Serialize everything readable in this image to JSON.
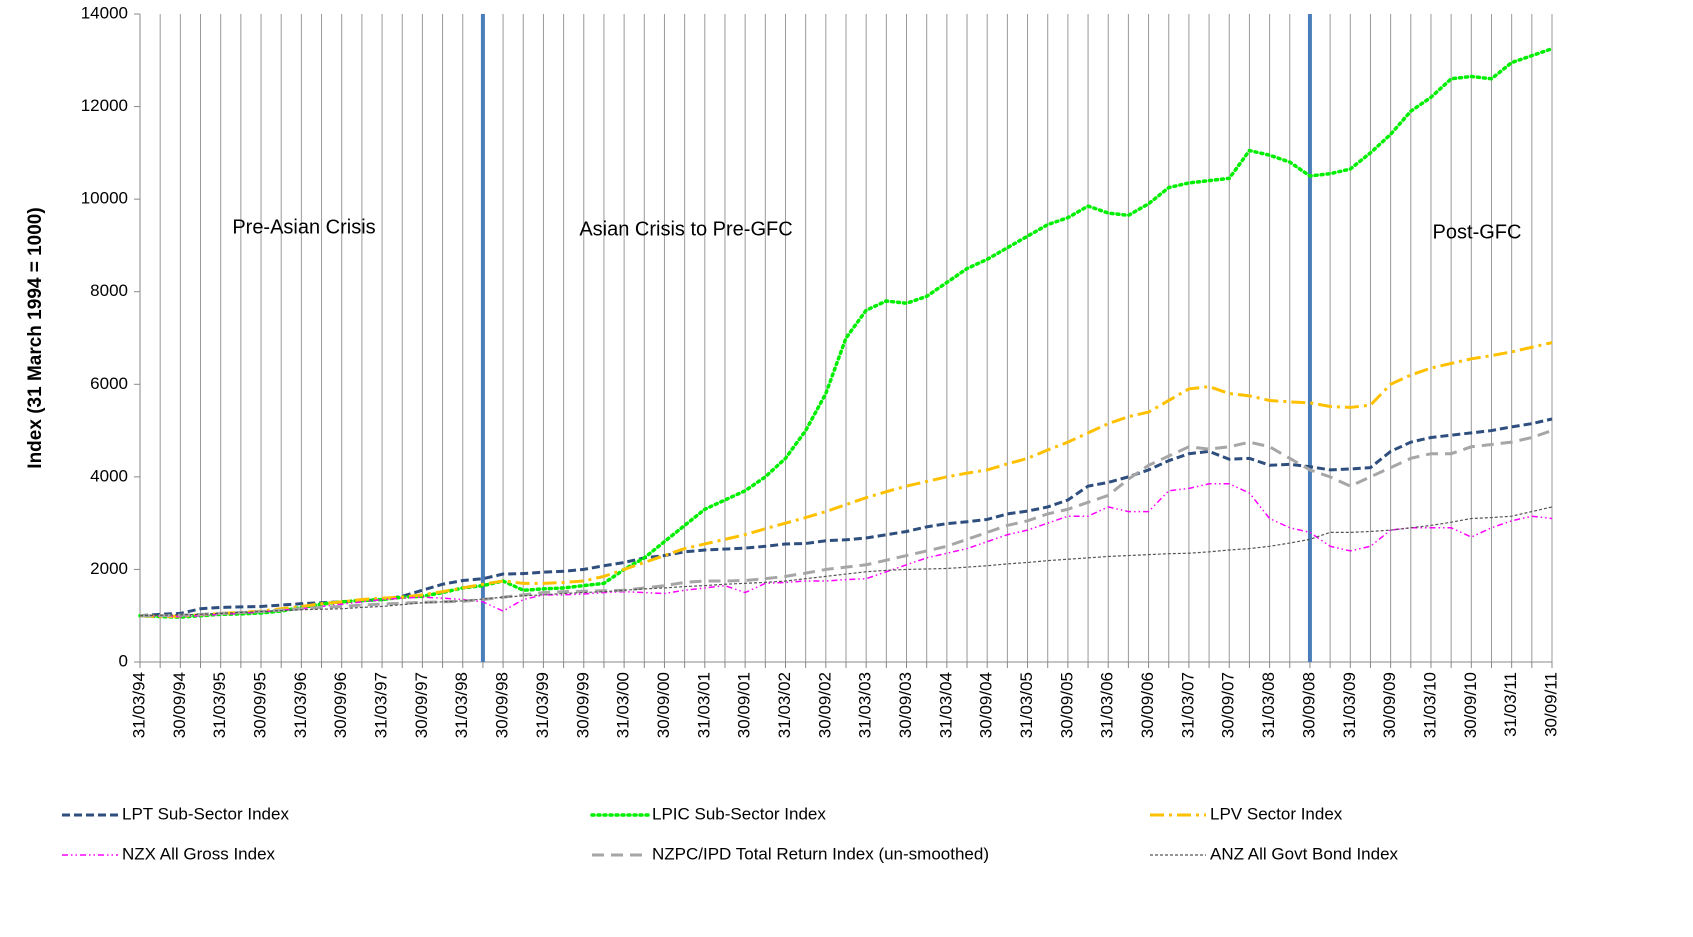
{
  "chart_data": {
    "type": "line",
    "ylabel": "Index (31 March 1994 = 1000)",
    "categories": [
      "31/03/94",
      null,
      "30/09/94",
      null,
      "31/03/95",
      null,
      "30/09/95",
      null,
      "31/03/96",
      null,
      "30/09/96",
      null,
      "31/03/97",
      null,
      "30/09/97",
      null,
      "31/03/98",
      null,
      "30/09/98",
      null,
      "31/03/99",
      null,
      "30/09/99",
      null,
      "31/03/00",
      null,
      "30/09/00",
      null,
      "31/03/01",
      null,
      "30/09/01",
      null,
      "31/03/02",
      null,
      "30/09/02",
      null,
      "31/03/03",
      null,
      "30/09/03",
      null,
      "31/03/04",
      null,
      "30/09/04",
      null,
      "31/03/05",
      null,
      "30/09/05",
      null,
      "31/03/06",
      null,
      "30/09/06",
      null,
      "31/03/07",
      null,
      "30/09/07",
      null,
      "31/03/08",
      null,
      "30/09/08",
      null,
      "31/03/09",
      null,
      "30/09/09",
      null,
      "31/03/10",
      null,
      "30/09/10",
      null,
      "31/03/11",
      null,
      "30/09/11"
    ],
    "ylim": [
      0,
      14000
    ],
    "yticks": [
      0,
      2000,
      4000,
      6000,
      8000,
      10000,
      12000,
      14000
    ],
    "grid": "x",
    "vlines": [
      17,
      58
    ],
    "vline_color": "#4a7ebb",
    "annotations": [
      {
        "text": "Pre-Asian Crisis"
      },
      {
        "text": "Asian Crisis to Pre-GFC"
      },
      {
        "text": "Post-GFC"
      }
    ],
    "legend": "bottom",
    "series": [
      {
        "name": "LPT Sub-Sector Index",
        "color": "#2e4e7e",
        "dash": "dash",
        "values": [
          1000,
          1030,
          1050,
          1150,
          1180,
          1190,
          1200,
          1230,
          1260,
          1280,
          1300,
          1320,
          1350,
          1420,
          1550,
          1680,
          1760,
          1800,
          1900,
          1910,
          1940,
          1960,
          2000,
          2080,
          2150,
          2250,
          2300,
          2380,
          2420,
          2440,
          2460,
          2500,
          2550,
          2560,
          2620,
          2640,
          2680,
          2750,
          2820,
          2920,
          2990,
          3030,
          3080,
          3200,
          3260,
          3350,
          3500,
          3800,
          3880,
          4000,
          4150,
          4350,
          4500,
          4550,
          4380,
          4400,
          4250,
          4270,
          4220,
          4150,
          4170,
          4200,
          4550,
          4750,
          4850,
          4900,
          4950,
          5000,
          5080,
          5150,
          5250
        ]
      },
      {
        "name": "LPIC Sub-Sector Index",
        "color": "#00ee00",
        "dash": "dot",
        "values": [
          1000,
          980,
          970,
          1000,
          1030,
          1040,
          1060,
          1100,
          1180,
          1250,
          1300,
          1330,
          1350,
          1400,
          1420,
          1500,
          1600,
          1650,
          1750,
          1550,
          1580,
          1600,
          1650,
          1700,
          2000,
          2250,
          2600,
          2950,
          3300,
          3500,
          3700,
          4000,
          4400,
          5000,
          5800,
          7000,
          7600,
          7800,
          7750,
          7900,
          8200,
          8500,
          8700,
          8950,
          9200,
          9450,
          9600,
          9850,
          9700,
          9650,
          9900,
          10250,
          10350,
          10400,
          10450,
          11050,
          10950,
          10800,
          10500,
          10550,
          10650,
          11000,
          11400,
          11900,
          12200,
          12600,
          12650,
          12600,
          12950,
          13100,
          13250
        ]
      },
      {
        "name": "LPV Sector Index",
        "color": "#ffc000",
        "dash": "dashdot",
        "values": [
          1000,
          980,
          990,
          1020,
          1050,
          1070,
          1100,
          1150,
          1200,
          1260,
          1300,
          1350,
          1380,
          1400,
          1450,
          1520,
          1600,
          1680,
          1750,
          1700,
          1700,
          1720,
          1750,
          1850,
          2000,
          2150,
          2300,
          2450,
          2550,
          2650,
          2750,
          2880,
          3000,
          3120,
          3250,
          3400,
          3550,
          3680,
          3800,
          3900,
          4000,
          4080,
          4150,
          4280,
          4400,
          4580,
          4750,
          4950,
          5150,
          5300,
          5400,
          5650,
          5900,
          5950,
          5800,
          5750,
          5650,
          5620,
          5600,
          5520,
          5500,
          5550,
          6000,
          6200,
          6350,
          6450,
          6550,
          6620,
          6700,
          6800,
          6900
        ]
      },
      {
        "name": "NZX All Gross Index",
        "color": "#ff00ff",
        "dash": "dashdotdot",
        "values": [
          1000,
          990,
          980,
          1000,
          1030,
          1050,
          1080,
          1120,
          1150,
          1200,
          1250,
          1300,
          1350,
          1380,
          1400,
          1380,
          1350,
          1300,
          1100,
          1350,
          1450,
          1450,
          1470,
          1500,
          1520,
          1500,
          1480,
          1550,
          1600,
          1650,
          1500,
          1700,
          1720,
          1750,
          1750,
          1780,
          1800,
          1950,
          2100,
          2250,
          2350,
          2450,
          2600,
          2750,
          2850,
          3000,
          3150,
          3150,
          3350,
          3250,
          3250,
          3700,
          3750,
          3850,
          3850,
          3650,
          3100,
          2900,
          2800,
          2500,
          2400,
          2500,
          2850,
          2900,
          2900,
          2900,
          2700,
          2900,
          3050,
          3150,
          3100
        ]
      },
      {
        "name": "NZPC/IPD Total Return Index (un-smoothed)",
        "color": "#a6a6a6",
        "dash": "longdash",
        "values": [
          1000,
          1000,
          1010,
          1030,
          1050,
          1070,
          1090,
          1120,
          1150,
          1180,
          1200,
          1230,
          1250,
          1270,
          1290,
          1300,
          1310,
          1350,
          1400,
          1450,
          1500,
          1520,
          1530,
          1540,
          1550,
          1600,
          1650,
          1720,
          1750,
          1750,
          1760,
          1800,
          1850,
          1920,
          2000,
          2050,
          2100,
          2200,
          2300,
          2400,
          2500,
          2650,
          2800,
          2950,
          3050,
          3200,
          3300,
          3450,
          3600,
          3950,
          4250,
          4450,
          4650,
          4600,
          4650,
          4750,
          4650,
          4400,
          4150,
          4000,
          3800,
          4000,
          4200,
          4400,
          4500,
          4500,
          4650,
          4700,
          4750,
          4850,
          5000
        ]
      },
      {
        "name": "ANZ All Govt Bond Index",
        "color": "#555555",
        "dash": "shortdash",
        "values": [
          1000,
          1010,
          1020,
          1030,
          1050,
          1070,
          1090,
          1110,
          1130,
          1140,
          1150,
          1180,
          1200,
          1240,
          1280,
          1300,
          1320,
          1360,
          1400,
          1430,
          1450,
          1480,
          1500,
          1520,
          1550,
          1580,
          1600,
          1630,
          1650,
          1680,
          1700,
          1720,
          1750,
          1800,
          1850,
          1900,
          1950,
          1980,
          2000,
          2010,
          2020,
          2050,
          2080,
          2120,
          2150,
          2190,
          2220,
          2250,
          2280,
          2300,
          2320,
          2340,
          2350,
          2380,
          2420,
          2450,
          2500,
          2570,
          2650,
          2800,
          2800,
          2820,
          2850,
          2900,
          2950,
          3020,
          3100,
          3120,
          3150,
          3250,
          3350
        ]
      }
    ]
  }
}
